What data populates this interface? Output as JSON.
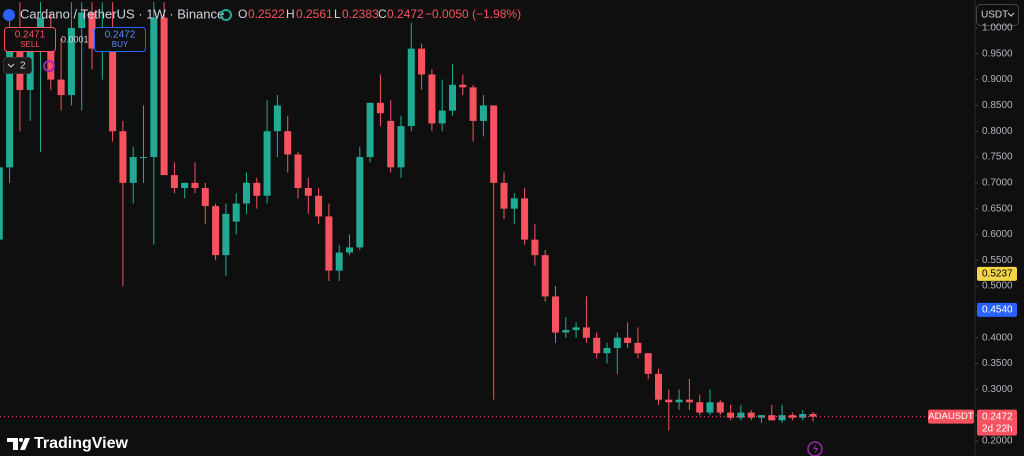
{
  "header": {
    "symbol": "Cardano / TetherUS · 1W · Binance",
    "labels": [
      "O",
      "H",
      "L",
      "C"
    ],
    "change": "−0.0050 (−1.98%)"
  },
  "trade": {
    "sell_price": "0.2471",
    "sell": "SELL",
    "spread": "0.0001",
    "buy_price": "0.2472",
    "buy": "BUY",
    "indicators": "2"
  },
  "currency": "USDT",
  "brand": "TradingView",
  "chart_data": {
    "type": "candlestick",
    "open": [
      0.59,
      0.73,
      0.97,
      0.88,
      0.98,
      0.98,
      0.9,
      0.87,
      1.0,
      1.03,
      0.96,
      1.0,
      0.8,
      0.7,
      0.75,
      0.75,
      1.02,
      0.715,
      0.69,
      0.7,
      0.69,
      0.655,
      0.56,
      0.625,
      0.66,
      0.7,
      0.675,
      0.8,
      0.8,
      0.755,
      0.69,
      0.675,
      0.635,
      0.53,
      0.565,
      0.575,
      0.75,
      0.855,
      0.82,
      0.73,
      0.81,
      0.96,
      0.91,
      0.815,
      0.84,
      0.89,
      0.885,
      0.82,
      0.85,
      0.7,
      0.65,
      0.67,
      0.59,
      0.56,
      0.48,
      0.41,
      0.415,
      0.42,
      0.4,
      0.37,
      0.38,
      0.4,
      0.39,
      0.37,
      0.33,
      0.28,
      0.275,
      0.28,
      0.275,
      0.255,
      0.275,
      0.255,
      0.245,
      0.255,
      0.245,
      0.25,
      0.24,
      0.25,
      0.245,
      0.2522
    ],
    "high": [
      0.74,
      1.02,
      1.05,
      1.0,
      1.05,
      1.03,
      0.98,
      1.05,
      1.05,
      1.05,
      1.05,
      1.05,
      0.82,
      0.77,
      0.85,
      1.05,
      1.05,
      0.74,
      0.7,
      0.74,
      0.7,
      0.66,
      0.66,
      0.68,
      0.72,
      0.71,
      0.86,
      0.87,
      0.83,
      0.76,
      0.71,
      0.69,
      0.66,
      0.58,
      0.6,
      0.77,
      0.85,
      0.91,
      0.86,
      0.83,
      1.01,
      0.97,
      0.92,
      0.9,
      0.93,
      0.91,
      0.89,
      0.87,
      0.85,
      0.72,
      0.68,
      0.69,
      0.62,
      0.57,
      0.5,
      0.44,
      0.43,
      0.48,
      0.41,
      0.39,
      0.41,
      0.43,
      0.42,
      0.37,
      0.34,
      0.3,
      0.3,
      0.32,
      0.29,
      0.3,
      0.28,
      0.27,
      0.27,
      0.26,
      0.25,
      0.27,
      0.27,
      0.255,
      0.26,
      0.2561
    ],
    "low": [
      0.55,
      0.7,
      0.8,
      0.82,
      0.76,
      0.88,
      0.84,
      0.85,
      0.84,
      0.92,
      0.9,
      0.78,
      0.5,
      0.66,
      0.7,
      0.58,
      0.72,
      0.68,
      0.67,
      0.68,
      0.62,
      0.55,
      0.52,
      0.6,
      0.64,
      0.65,
      0.66,
      0.75,
      0.72,
      0.67,
      0.64,
      0.62,
      0.51,
      0.51,
      0.56,
      0.57,
      0.74,
      0.81,
      0.72,
      0.71,
      0.8,
      0.88,
      0.8,
      0.8,
      0.83,
      0.87,
      0.78,
      0.79,
      0.28,
      0.63,
      0.62,
      0.58,
      0.54,
      0.47,
      0.39,
      0.4,
      0.4,
      0.39,
      0.36,
      0.35,
      0.33,
      0.38,
      0.36,
      0.32,
      0.27,
      0.22,
      0.26,
      0.26,
      0.25,
      0.25,
      0.25,
      0.24,
      0.24,
      0.24,
      0.235,
      0.24,
      0.235,
      0.24,
      0.24,
      0.2383
    ],
    "close": [
      0.73,
      1.0,
      0.88,
      0.98,
      1.02,
      0.9,
      0.87,
      1.0,
      1.03,
      0.96,
      1.0,
      0.8,
      0.7,
      0.75,
      0.75,
      1.02,
      0.715,
      0.69,
      0.7,
      0.69,
      0.655,
      0.56,
      0.64,
      0.66,
      0.7,
      0.675,
      0.8,
      0.85,
      0.755,
      0.69,
      0.675,
      0.635,
      0.53,
      0.565,
      0.575,
      0.75,
      0.855,
      0.835,
      0.73,
      0.81,
      0.96,
      0.91,
      0.815,
      0.84,
      0.89,
      0.885,
      0.82,
      0.85,
      0.7,
      0.65,
      0.67,
      0.59,
      0.56,
      0.48,
      0.41,
      0.415,
      0.42,
      0.4,
      0.37,
      0.38,
      0.4,
      0.39,
      0.37,
      0.33,
      0.28,
      0.275,
      0.28,
      0.275,
      0.255,
      0.275,
      0.255,
      0.245,
      0.255,
      0.245,
      0.25,
      0.24,
      0.25,
      0.245,
      0.2522,
      0.2472
    ],
    "up_color": "#22ab94",
    "down_color": "#f7525f",
    "ylim": [
      0.1709,
      1.0542
    ],
    "yticks": [
      {
        "value": 1.0,
        "label": "1.0000"
      },
      {
        "value": 0.95,
        "label": "0.9500"
      },
      {
        "value": 0.9,
        "label": "0.9000"
      },
      {
        "value": 0.85,
        "label": "0.8500"
      },
      {
        "value": 0.8,
        "label": "0.8000"
      },
      {
        "value": 0.75,
        "label": "0.7500"
      },
      {
        "value": 0.7,
        "label": "0.7000"
      },
      {
        "value": 0.65,
        "label": "0.6500"
      },
      {
        "value": 0.6,
        "label": "0.6000"
      },
      {
        "value": 0.55,
        "label": "0.5500"
      },
      {
        "value": 0.5,
        "label": "0.5000"
      },
      {
        "value": 0.45,
        "label": "0.4500"
      },
      {
        "value": 0.4,
        "label": "0.4000"
      },
      {
        "value": 0.35,
        "label": "0.3500"
      },
      {
        "value": 0.3,
        "label": "0.3000"
      },
      {
        "value": 0.25,
        "label": "0.2500"
      },
      {
        "value": 0.2,
        "label": "0.2000"
      }
    ],
    "grid": false,
    "price_lines": [
      {
        "value": 0.5237,
        "color": "#f5d547",
        "text_color": "#000000"
      },
      {
        "value": 0.454,
        "label": "0.4540",
        "color": "#2962ff",
        "text_color": "#ffffff"
      }
    ],
    "last_price": {
      "symbol": "ADAUSDT",
      "countdown": "2d 22h"
    }
  }
}
